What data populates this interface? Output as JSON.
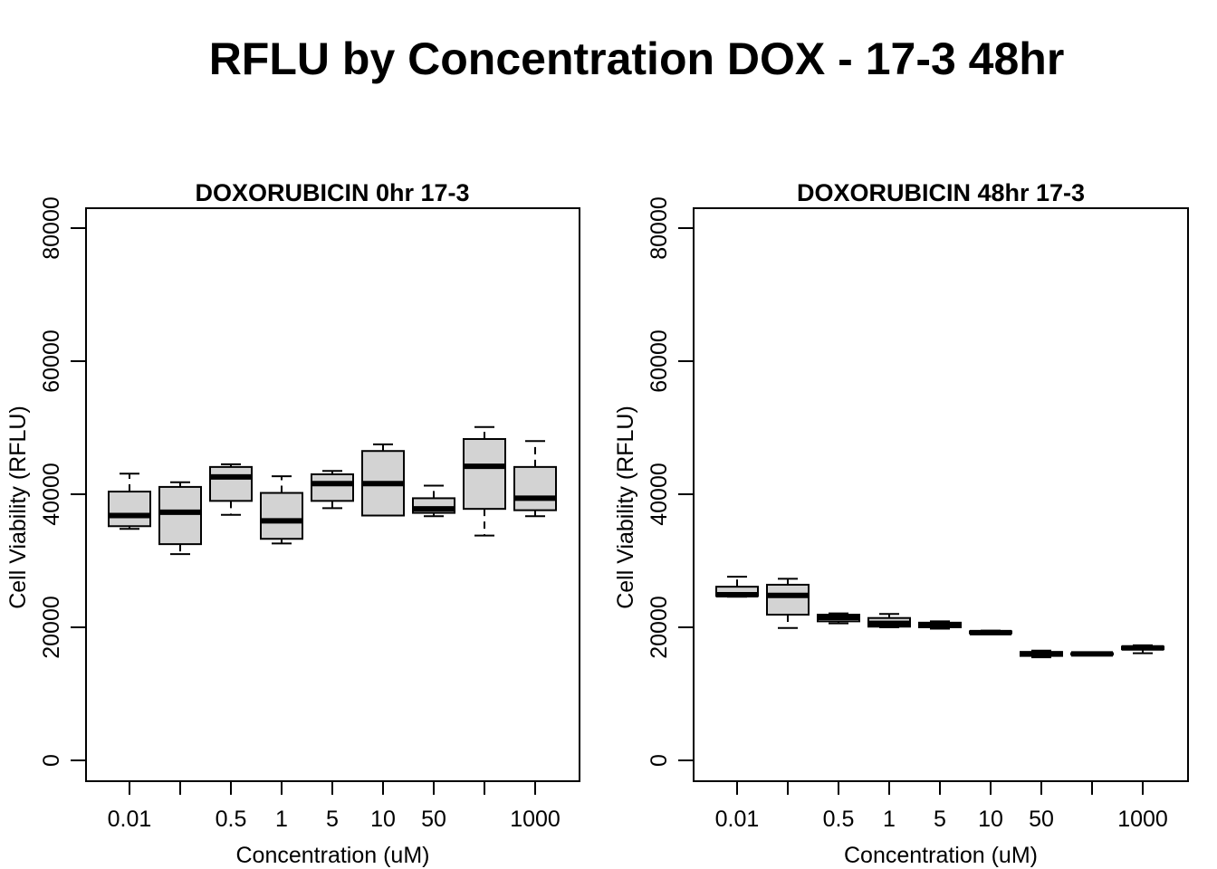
{
  "title": "RFLU by Concentration DOX - 17-3 48hr",
  "chart_data": [
    {
      "type": "boxplot",
      "title": "DOXORUBICIN 0hr 17-3",
      "xlabel": "Concentration (uM)",
      "ylabel": "Cell Viability (RFLU)",
      "ylim": [
        0,
        80000
      ],
      "yticks": [
        "0",
        "20000",
        "40000",
        "60000",
        "80000"
      ],
      "categories": [
        "0.01",
        "",
        "0.5",
        "1",
        "5",
        "10",
        "50",
        "",
        "1000"
      ],
      "boxes": [
        {
          "min": 34800,
          "q1": 35200,
          "median": 36800,
          "q3": 40400,
          "max": 43100
        },
        {
          "min": 31000,
          "q1": 32500,
          "median": 37300,
          "q3": 41100,
          "max": 41800
        },
        {
          "min": 36900,
          "q1": 39000,
          "median": 42600,
          "q3": 44100,
          "max": 44500
        },
        {
          "min": 32600,
          "q1": 33300,
          "median": 36000,
          "q3": 40200,
          "max": 42700
        },
        {
          "min": 37900,
          "q1": 39000,
          "median": 41600,
          "q3": 43000,
          "max": 43500
        },
        {
          "min": 36800,
          "q1": 36800,
          "median": 41600,
          "q3": 46500,
          "max": 47500
        },
        {
          "min": 36700,
          "q1": 37200,
          "median": 37800,
          "q3": 39400,
          "max": 41300
        },
        {
          "min": 33800,
          "q1": 37800,
          "median": 44200,
          "q3": 48300,
          "max": 50100
        },
        {
          "min": 36700,
          "q1": 37600,
          "median": 39400,
          "q3": 44100,
          "max": 48000
        }
      ]
    },
    {
      "type": "boxplot",
      "title": "DOXORUBICIN 48hr 17-3",
      "xlabel": "Concentration (uM)",
      "ylabel": "Cell Viability (RFLU)",
      "ylim": [
        0,
        80000
      ],
      "yticks": [
        "0",
        "20000",
        "40000",
        "60000",
        "80000"
      ],
      "categories": [
        "0.01",
        "",
        "0.5",
        "1",
        "5",
        "10",
        "50",
        "",
        "1000"
      ],
      "boxes": [
        {
          "min": 24600,
          "q1": 24700,
          "median": 24900,
          "q3": 26100,
          "max": 27600
        },
        {
          "min": 19900,
          "q1": 21900,
          "median": 24800,
          "q3": 26400,
          "max": 27300
        },
        {
          "min": 20600,
          "q1": 20900,
          "median": 21500,
          "q3": 21900,
          "max": 22100
        },
        {
          "min": 20000,
          "q1": 20100,
          "median": 20600,
          "q3": 21400,
          "max": 22000
        },
        {
          "min": 19800,
          "q1": 20000,
          "median": 20400,
          "q3": 20700,
          "max": 20900
        },
        {
          "min": 19000,
          "q1": 19100,
          "median": 19200,
          "q3": 19400,
          "max": 19500
        },
        {
          "min": 15500,
          "q1": 15700,
          "median": 16000,
          "q3": 16300,
          "max": 16500
        },
        {
          "min": 15800,
          "q1": 15900,
          "median": 16000,
          "q3": 16100,
          "max": 16200
        },
        {
          "min": 16100,
          "q1": 16700,
          "median": 16900,
          "q3": 17100,
          "max": 17300
        }
      ]
    }
  ]
}
